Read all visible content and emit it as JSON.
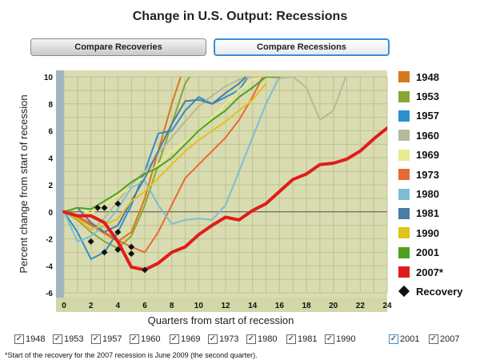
{
  "title": "Change in U.S. Output: Recessions",
  "buttons": {
    "recoveries_label": "Compare Recoveries",
    "recessions_label": "Compare Recessions"
  },
  "chart_data": {
    "type": "line",
    "title": "",
    "xlabel": "Quarters from start of recession",
    "ylabel": "Percent change from start of recession",
    "xlim": [
      0,
      24
    ],
    "ylim": [
      -6,
      10
    ],
    "x_ticks": [
      0,
      2,
      4,
      6,
      8,
      10,
      12,
      14,
      16,
      18,
      20,
      22,
      24
    ],
    "y_ticks": [
      -6,
      -4,
      -2,
      0,
      2,
      4,
      6,
      8,
      10
    ],
    "grid": true,
    "legend_position": "right",
    "series": [
      {
        "name": "1948",
        "color": "#d9761e",
        "x": [
          0,
          1,
          2,
          3,
          4,
          5,
          6,
          7,
          8,
          9
        ],
        "y": [
          0,
          -0.4,
          -1.0,
          -1.6,
          -2.2,
          -1.5,
          1.0,
          4.5,
          8.0,
          11
        ]
      },
      {
        "name": "1953",
        "color": "#8aa634",
        "x": [
          0,
          1,
          2,
          3,
          4,
          5,
          6,
          7,
          8,
          9,
          10
        ],
        "y": [
          0,
          -0.6,
          -1.5,
          -2.2,
          -2.7,
          -1.8,
          0.5,
          3.5,
          6.5,
          9.5,
          11
        ]
      },
      {
        "name": "1957",
        "color": "#2c8fce",
        "x": [
          0,
          1,
          2,
          3,
          4,
          5,
          6,
          7,
          8,
          9,
          10,
          11,
          12,
          13,
          14
        ],
        "y": [
          0,
          -1.5,
          -3.5,
          -3.0,
          -1.5,
          0.5,
          3.0,
          5.8,
          6.0,
          7.5,
          8.5,
          8.0,
          8.5,
          9.0,
          10.5
        ]
      },
      {
        "name": "1960",
        "color": "#b7b99a",
        "x": [
          0,
          1,
          2,
          3,
          4,
          5,
          6,
          7,
          8,
          9,
          10,
          11,
          12,
          13,
          14,
          15,
          16,
          17,
          18,
          19,
          20,
          21
        ],
        "y": [
          0,
          -0.5,
          -1.4,
          -0.5,
          0.8,
          2.0,
          3.0,
          4.3,
          5.5,
          6.7,
          7.8,
          8.6,
          9.3,
          9.8,
          10.0,
          10.0,
          9.9,
          10.0,
          9.2,
          6.8,
          7.5,
          10.2
        ]
      },
      {
        "name": "1969",
        "color": "#e8eb8c",
        "x": [
          0,
          1,
          2,
          3,
          4,
          5,
          6,
          7,
          8,
          9,
          10,
          11,
          12,
          13,
          14,
          15,
          16
        ],
        "y": [
          0,
          0.2,
          -0.1,
          0.5,
          1.2,
          1.8,
          2.6,
          3.5,
          4.5,
          5.2,
          6.0,
          7.0,
          8.0,
          9.0,
          9.8,
          10.0,
          10.2
        ]
      },
      {
        "name": "1973",
        "color": "#e86a33",
        "x": [
          0,
          1,
          2,
          3,
          4,
          5,
          6,
          7,
          8,
          9,
          10,
          11,
          12,
          13,
          14,
          15
        ],
        "y": [
          0,
          -0.3,
          -0.9,
          -1.5,
          -2.1,
          -2.6,
          -3.0,
          -1.5,
          0.5,
          2.5,
          3.5,
          4.5,
          5.5,
          6.8,
          8.5,
          10.5
        ]
      },
      {
        "name": "1980",
        "color": "#7fbcd6",
        "x": [
          0,
          1,
          2,
          3,
          4,
          5,
          6,
          7,
          8,
          9,
          10,
          11,
          12,
          13,
          14,
          15,
          16
        ],
        "y": [
          0,
          -2.2,
          -1.8,
          -1.0,
          0.2,
          1.8,
          2.3,
          0.5,
          -0.9,
          -0.6,
          -0.5,
          -0.6,
          0.5,
          3.0,
          5.5,
          8.0,
          10.0
        ]
      },
      {
        "name": "1981",
        "color": "#4d7aa6",
        "x": [
          0,
          1,
          2,
          3,
          4,
          5,
          6,
          7,
          8,
          9,
          10,
          11,
          12,
          13,
          14
        ],
        "y": [
          0,
          0.3,
          -0.8,
          -1.5,
          -1.0,
          0.8,
          2.5,
          4.5,
          6.5,
          8.2,
          8.3,
          8.0,
          8.8,
          9.5,
          10.5
        ]
      },
      {
        "name": "1990",
        "color": "#e3c21a",
        "x": [
          0,
          1,
          2,
          3,
          4,
          5,
          6,
          7,
          8,
          9,
          10,
          11,
          12,
          13,
          14,
          15
        ],
        "y": [
          0,
          -0.5,
          -1.3,
          -1.0,
          -0.5,
          0.8,
          1.5,
          2.5,
          3.5,
          4.5,
          5.3,
          6.0,
          6.7,
          7.5,
          8.3,
          9.5
        ]
      },
      {
        "name": "2001",
        "color": "#4ea01e",
        "x": [
          0,
          1,
          2,
          3,
          4,
          5,
          6,
          7,
          8,
          9,
          10,
          11,
          12,
          13,
          14,
          15,
          16
        ],
        "y": [
          0,
          0.3,
          0.2,
          0.8,
          1.4,
          2.2,
          2.8,
          3.3,
          4.0,
          5.0,
          6.0,
          6.8,
          7.5,
          8.5,
          9.2,
          10.0,
          10.0
        ]
      },
      {
        "name": "2007*",
        "color": "#e01c1c",
        "x": [
          0,
          1,
          2,
          3,
          4,
          5,
          6,
          7,
          8,
          9,
          10,
          11,
          12,
          13,
          14,
          15,
          16,
          17,
          18,
          19,
          20,
          21,
          22,
          23,
          24
        ],
        "y": [
          0,
          -0.3,
          -0.3,
          -0.8,
          -2.2,
          -4.1,
          -4.3,
          -3.8,
          -3.0,
          -2.6,
          -1.7,
          -1.0,
          -0.4,
          -0.6,
          0.1,
          0.6,
          1.5,
          2.4,
          2.8,
          3.5,
          3.6,
          3.9,
          4.5,
          5.4,
          6.2
        ]
      }
    ],
    "recovery_points": [
      {
        "x": 2,
        "y": -2.2
      },
      {
        "x": 3,
        "y": -3.0
      },
      {
        "x": 4,
        "y": -1.5
      },
      {
        "x": 4,
        "y": -2.8
      },
      {
        "x": 5,
        "y": -2.6
      },
      {
        "x": 5,
        "y": -3.1
      },
      {
        "x": 2.5,
        "y": 0.3
      },
      {
        "x": 3,
        "y": 0.3
      },
      {
        "x": 4,
        "y": 0.6
      },
      {
        "x": 6,
        "y": -4.3
      }
    ],
    "recovery_label": "Recovery"
  },
  "checkboxes": [
    {
      "label": "1948",
      "checked": true
    },
    {
      "label": "1953",
      "checked": true
    },
    {
      "label": "1957",
      "checked": true
    },
    {
      "label": "1960",
      "checked": true
    },
    {
      "label": "1969",
      "checked": true
    },
    {
      "label": "1973",
      "checked": true
    },
    {
      "label": "1980",
      "checked": true
    },
    {
      "label": "1981",
      "checked": true
    },
    {
      "label": "1990",
      "checked": true
    },
    {
      "label": "2001",
      "checked": true
    },
    {
      "label": "2007",
      "checked": true
    }
  ],
  "check_mark": "✓",
  "footnote": "*Start of the recovery for the 2007 recession is June 2009 (the second quarter)."
}
